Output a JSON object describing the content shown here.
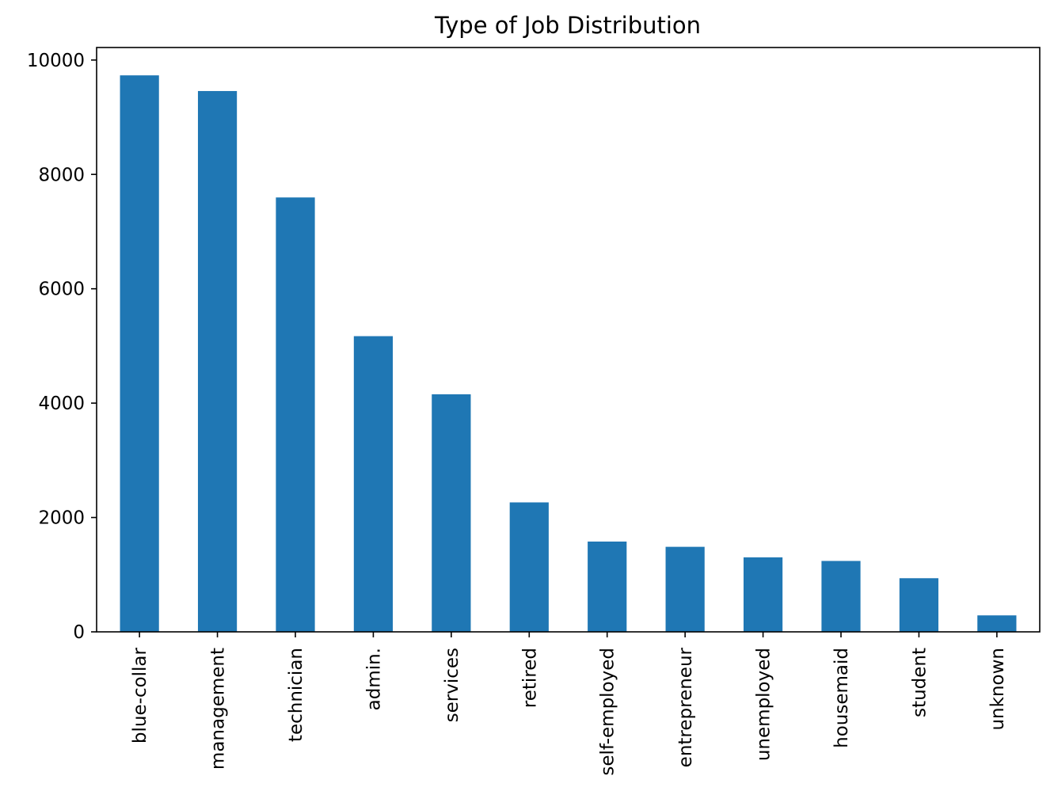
{
  "chart_data": {
    "type": "bar",
    "title": "Type of Job Distribution",
    "xlabel": "",
    "ylabel": "",
    "categories": [
      "blue-collar",
      "management",
      "technician",
      "admin.",
      "services",
      "retired",
      "self-employed",
      "entrepreneur",
      "unemployed",
      "housemaid",
      "student",
      "unknown"
    ],
    "values": [
      9732,
      9458,
      7597,
      5171,
      4154,
      2264,
      1579,
      1487,
      1303,
      1240,
      938,
      288
    ],
    "yticks": [
      0,
      2000,
      4000,
      6000,
      8000,
      10000
    ],
    "ylim": [
      0,
      10219
    ],
    "grid": false,
    "bar_color": "#1f77b4"
  }
}
